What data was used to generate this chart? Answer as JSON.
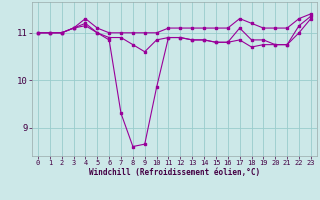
{
  "xlabel": "Windchill (Refroidissement éolien,°C)",
  "hours": [
    0,
    1,
    2,
    3,
    4,
    5,
    6,
    7,
    8,
    9,
    10,
    11,
    12,
    13,
    14,
    15,
    16,
    17,
    18,
    19,
    20,
    21,
    22,
    23
  ],
  "line_max": [
    11.0,
    11.0,
    11.0,
    11.1,
    11.3,
    11.1,
    11.0,
    11.0,
    11.0,
    11.0,
    11.0,
    11.1,
    11.1,
    11.1,
    11.1,
    11.1,
    11.1,
    11.3,
    11.2,
    11.1,
    11.1,
    11.1,
    11.3,
    11.4
  ],
  "line_mid": [
    11.0,
    11.0,
    11.0,
    11.1,
    11.2,
    11.0,
    10.9,
    10.9,
    10.75,
    10.6,
    10.85,
    10.9,
    10.9,
    10.85,
    10.85,
    10.8,
    10.8,
    11.1,
    10.85,
    10.85,
    10.75,
    10.75,
    11.15,
    11.35
  ],
  "line_min": [
    11.0,
    11.0,
    11.0,
    11.1,
    11.15,
    11.0,
    10.85,
    9.3,
    8.6,
    8.65,
    9.85,
    10.9,
    10.9,
    10.85,
    10.85,
    10.8,
    10.8,
    10.85,
    10.7,
    10.75,
    10.75,
    10.75,
    11.0,
    11.3
  ],
  "bg_color": "#cce8e8",
  "line_color": "#990099",
  "grid_color": "#99cccc",
  "ylim": [
    8.4,
    11.65
  ],
  "yticks": [
    9,
    10,
    11
  ],
  "xlim": [
    -0.5,
    23.5
  ],
  "tick_fontsize": 5.0,
  "xlabel_fontsize": 5.5,
  "linewidth": 0.8,
  "markersize": 2.0
}
